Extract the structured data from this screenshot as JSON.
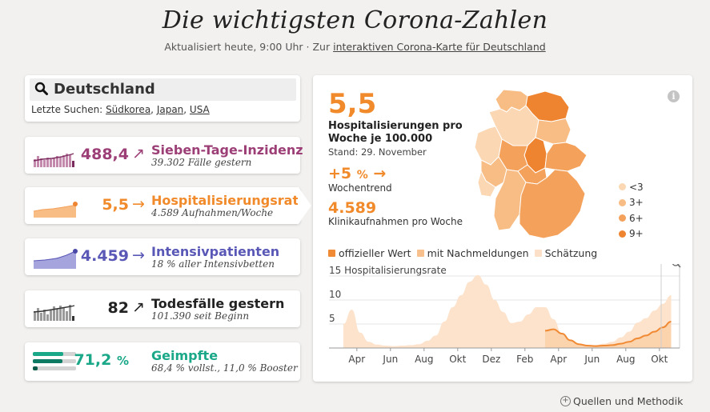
{
  "header": {
    "title": "Die wichtigsten Corona-Zahlen",
    "subtitle_prefix": "Aktualisiert heute, 9:00 Uhr · Zur ",
    "subtitle_link": "interaktiven Corona-Karte für Deutschland"
  },
  "search": {
    "value": "Deutschland",
    "recent_label": "Letzte Suchen:",
    "recent": [
      "Südkorea",
      "Japan",
      "USA"
    ],
    "sep": ", "
  },
  "metrics": [
    {
      "value": "488,4",
      "arrow": "↗",
      "name": "Sieben-Tage-Inzidenz",
      "sub": "39.302 Fälle gestern",
      "color": "#9c3f77"
    },
    {
      "value": "5,5",
      "arrow": "→",
      "name": "Hospitalisierungsrate",
      "sub": "4.589 Aufnahmen/Woche",
      "color": "#f18a2b"
    },
    {
      "value": "4.459",
      "arrow": "→",
      "name": "Intensivpatienten",
      "sub": "18 % aller Intensivbetten",
      "color": "#5a58b6"
    },
    {
      "value": "82",
      "arrow": "↗",
      "name": "Todesfälle gestern",
      "sub": "101.390 seit Beginn",
      "color": "#222222"
    },
    {
      "value": "71,2",
      "unit": "%",
      "name": "Geimpfte",
      "sub": "68,4 % vollst., 11,0 % Booster",
      "color": "#1aa889"
    }
  ],
  "detail": {
    "big_value": "5,5",
    "label_line1": "Hospitalisierungen pro",
    "label_line2": "Woche je 100.000",
    "stand": "Stand: 29. November",
    "trend_value": "+5",
    "trend_unit": "%",
    "trend_arrow": "→",
    "trend_label": "Wochentrend",
    "clinic_value": "4.589",
    "clinic_label": "Klinikaufnahmen pro Woche",
    "info": "i"
  },
  "map_legend": [
    {
      "label": "<3",
      "color": "#fbd7b3"
    },
    {
      "label": "3+",
      "color": "#f8bd85"
    },
    {
      "label": "6+",
      "color": "#f4a15b"
    },
    {
      "label": "9+",
      "color": "#ee8430"
    }
  ],
  "series_legend": [
    {
      "label": "offizieller Wert",
      "color": "#f08a34"
    },
    {
      "label": "mit Nachmeldungen",
      "color": "#f7c08c"
    },
    {
      "label": "Schätzung",
      "color": "#fde0c8"
    }
  ],
  "chart_data": {
    "type": "area",
    "title": "Hospitalisierungsrate",
    "ylim": [
      0,
      15
    ],
    "yticks": [
      5,
      10,
      15
    ],
    "ytick_labels": [
      "5",
      "10",
      "15 Hospitalisierungsrate"
    ],
    "xtick_labels": [
      "Apr",
      "Jun",
      "Aug",
      "Okt",
      "Dez",
      "Feb",
      "Apr",
      "Jun",
      "Aug",
      "Okt"
    ],
    "x_months": [
      0,
      2,
      4,
      6,
      8,
      10,
      12,
      14,
      16,
      18
    ],
    "background_series": {
      "name": "mit Nachmeldungen",
      "x": [
        0,
        0.5,
        1,
        1.5,
        2,
        2.5,
        3,
        3.5,
        4,
        4.5,
        5,
        5.5,
        6,
        6.5,
        7,
        7.5,
        8,
        8.5,
        9,
        9.5,
        10,
        10.5,
        11,
        11.5,
        12,
        12.5,
        13,
        13.5,
        14,
        14.5,
        15,
        15.5,
        16,
        16.5,
        17,
        17.5,
        18,
        18.5,
        19,
        19.5
      ],
      "y": [
        5,
        8,
        3.2,
        1.3,
        0.7,
        0.5,
        0.4,
        0.5,
        0.6,
        0.8,
        1.5,
        2.6,
        5.5,
        8.5,
        11,
        13.8,
        15.2,
        13.2,
        10,
        7.5,
        5.2,
        5.5,
        7,
        8.5,
        8.5,
        6,
        3,
        1.4,
        0.7,
        0.5,
        0.6,
        0.9,
        1.3,
        2.2,
        3.4,
        5.3,
        6.2,
        7.8,
        9.2,
        11
      ]
    },
    "official_series": {
      "name": "offizieller Wert",
      "x": [
        12,
        12.5,
        13,
        13.5,
        14,
        14.5,
        15,
        15.5,
        16,
        16.5,
        17,
        17.5,
        18,
        18.5,
        19,
        19.5
      ],
      "y": [
        3.6,
        3.9,
        3.0,
        1.6,
        0.8,
        0.5,
        0.4,
        0.5,
        0.6,
        0.9,
        1.3,
        2.0,
        2.6,
        3.4,
        4.3,
        5.5
      ]
    },
    "estimate_start_month": 19
  },
  "footer": {
    "sources": "Quellen und Methodik",
    "plus": "+"
  }
}
